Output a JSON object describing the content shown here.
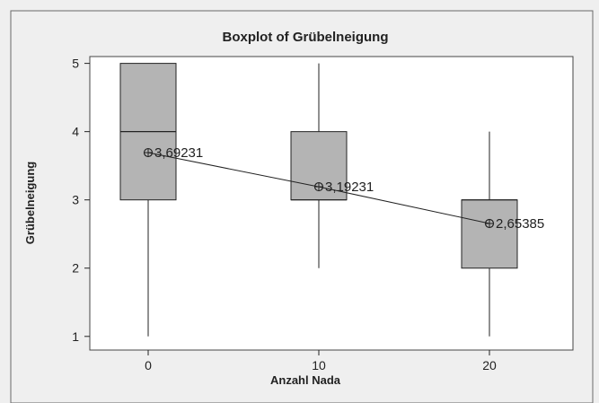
{
  "chart_data": {
    "type": "boxplot",
    "title": "Boxplot of Grübelneigung",
    "xlabel": "Anzahl Nada",
    "ylabel": "Grübelneigung",
    "categories": [
      "0",
      "10",
      "20"
    ],
    "boxes": [
      {
        "category": "0",
        "min": 1,
        "q1": 3,
        "median": 4,
        "q3": 5,
        "max": 5,
        "mean": 3.69231,
        "mean_label": "3,69231"
      },
      {
        "category": "10",
        "min": 2,
        "q1": 3,
        "median": 3,
        "q3": 4,
        "max": 5,
        "mean": 3.19231,
        "mean_label": "3,19231"
      },
      {
        "category": "20",
        "min": 1,
        "q1": 2,
        "median": 3,
        "q3": 3,
        "max": 4,
        "mean": 2.65385,
        "mean_label": "2,65385"
      }
    ],
    "y_ticks": [
      "1",
      "2",
      "3",
      "4",
      "5"
    ],
    "ylim": [
      0.8,
      5.1
    ],
    "mean_connect_line": true,
    "grid": false,
    "colors": {
      "background": "#efefef",
      "plot_bg": "#ffffff",
      "box_fill": "#b4b4b4",
      "line": "#222222"
    }
  }
}
